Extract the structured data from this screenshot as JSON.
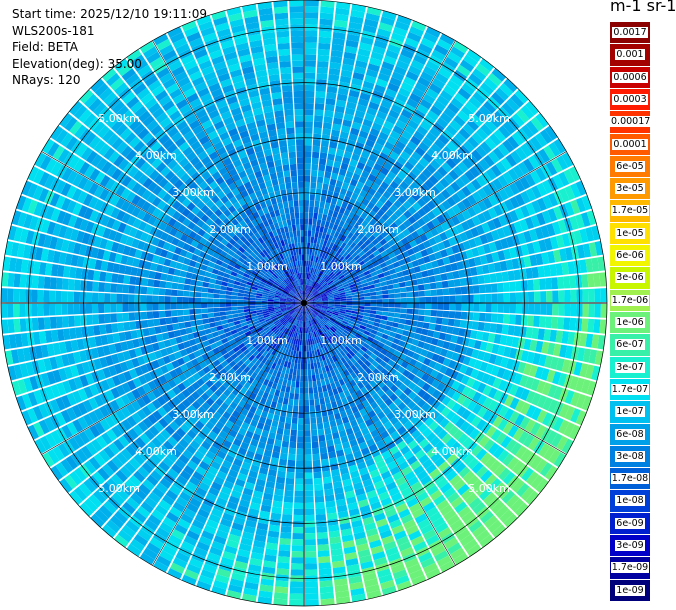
{
  "info": {
    "start_time": "Start time: 2025/12/10 19:11:09",
    "instrument": "WLS200s-181",
    "field": "Field: BETA",
    "elevation": "Elevation(deg): 35.00",
    "nrays": "NRays: 120"
  },
  "colorbar": {
    "title": "m-1 sr-1",
    "ticks": [
      {
        "label": "0.0017",
        "color": "#8b0000"
      },
      {
        "label": "0.001",
        "color": "#a30000"
      },
      {
        "label": "0.0006",
        "color": "#c80000"
      },
      {
        "label": "0.0003",
        "color": "#ff1a00"
      },
      {
        "label": "0.00017",
        "color": "#ff3300"
      },
      {
        "label": "0.0001",
        "color": "#ff5a00"
      },
      {
        "label": "6e-05",
        "color": "#ff7a00"
      },
      {
        "label": "3e-05",
        "color": "#ff9900"
      },
      {
        "label": "1.7e-05",
        "color": "#ffb800"
      },
      {
        "label": "1e-05",
        "color": "#ffe000"
      },
      {
        "label": "6e-06",
        "color": "#f2f500"
      },
      {
        "label": "3e-06",
        "color": "#c8f500"
      },
      {
        "label": "1.7e-06",
        "color": "#a0f050"
      },
      {
        "label": "1e-06",
        "color": "#6cf27a"
      },
      {
        "label": "6e-07",
        "color": "#38f0a8"
      },
      {
        "label": "3e-07",
        "color": "#18f0d0"
      },
      {
        "label": "1.7e-07",
        "color": "#00e0f0"
      },
      {
        "label": "1e-07",
        "color": "#00c0f0"
      },
      {
        "label": "6e-08",
        "color": "#00a0e8"
      },
      {
        "label": "3e-08",
        "color": "#0080e0"
      },
      {
        "label": "1.7e-08",
        "color": "#0060d8"
      },
      {
        "label": "1e-08",
        "color": "#0040d8"
      },
      {
        "label": "6e-09",
        "color": "#0020d0"
      },
      {
        "label": "3e-09",
        "color": "#0000c8"
      },
      {
        "label": "1.7e-09",
        "color": "#0000a0"
      },
      {
        "label": "1e-09",
        "color": "#00007a"
      }
    ]
  },
  "chart_data": {
    "type": "heatmap",
    "projection": "polar-ppi",
    "nrays": 120,
    "max_range_km": 5.5,
    "range_ring_labels": [
      {
        "km": 1,
        "label": "1.00km"
      },
      {
        "km": 2,
        "label": "2.00km"
      },
      {
        "km": 3,
        "label": "3.00km"
      },
      {
        "km": 4,
        "label": "4.00km"
      },
      {
        "km": 5,
        "label": "5.00km"
      }
    ],
    "dominant_value": "3e-08 to 1e-07 (blue/cyan)",
    "grid": true,
    "crosshair": true
  }
}
